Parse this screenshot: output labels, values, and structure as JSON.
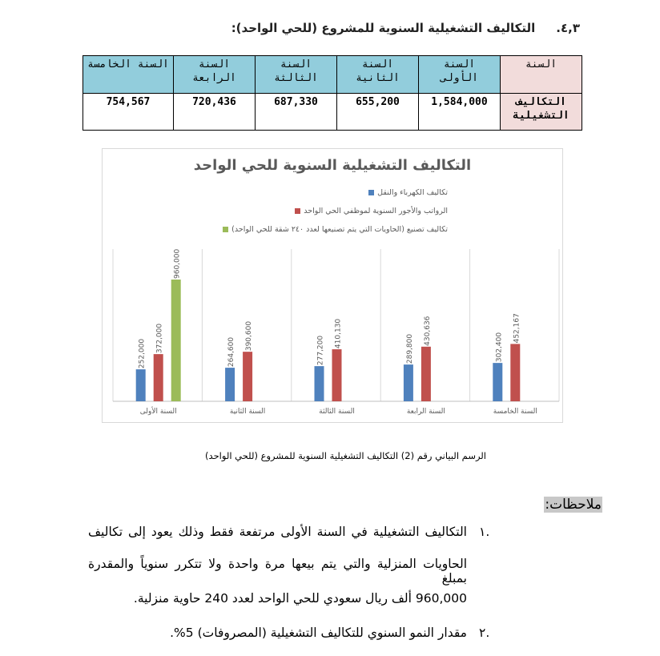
{
  "heading": {
    "number": "٤,٣.",
    "title": "التكاليف التشغيلية السنوية للمشروع (للحي الواحد):"
  },
  "table": {
    "header_label": "السنة",
    "columns": [
      "السنة الأولى",
      "السنة الثانية",
      "السنة الثالثة",
      "السنة الرابعة",
      "السنة الخامسة"
    ],
    "row_label": "التكاليف التشغيلية",
    "values": [
      "1,584,000",
      "655,200",
      "687,330",
      "720,436",
      "754,567"
    ]
  },
  "chart_data": {
    "type": "bar",
    "title": "التكاليف التشغيلية السنوية للحي الواحد",
    "categories": [
      "السنة الأولى",
      "السنة الثانية",
      "السنة الثالثة",
      "السنة الرابعة",
      "السنة الخامسة"
    ],
    "series": [
      {
        "name": "تكاليف الكهرباء والنقل",
        "color": "#4f81bd",
        "values": [
          252000,
          264600,
          277200,
          289800,
          302400
        ],
        "labels": [
          "252,000",
          "264,600",
          "277,200",
          "289,800",
          "302,400"
        ]
      },
      {
        "name": "الرواتب والأجور السنوية لموظفي الحي الواحد",
        "color": "#c0504d",
        "values": [
          372000,
          390600,
          410130,
          430636,
          452167
        ],
        "labels": [
          "372,000",
          "390,600",
          "410,130",
          "430,636",
          "452,167"
        ]
      },
      {
        "name": "تكاليف تصنيع (الحاويات التي يتم تصنيعها لعدد ٢٤٠ شقة للحي الواحد)",
        "color": "#9bbb59",
        "values": [
          960000,
          null,
          null,
          null,
          null
        ],
        "labels": [
          "960,000",
          "",
          "",
          "",
          ""
        ]
      }
    ],
    "ylim": [
      0,
      1200000
    ],
    "grid": "vertical category separators",
    "legend": "top",
    "xlabel": "",
    "ylabel": ""
  },
  "caption": "الرسم البياني رقم (2) التكاليف التشغيلية السنوية للمشروع (للحي الواحد)",
  "notes": {
    "label": "ملاحظات:",
    "items": [
      {
        "marker": "١.",
        "lines": [
          "التكاليف التشغيلية في السنة الأولى مرتفعة فقط وذلك يعود إلى تكاليف",
          "الحاويات المنزلية والتي يتم بيعها مرة واحدة ولا تتكرر سنوياً والمقدرة بمبلغ",
          "960,000 ألف ريال سعودي للحي الواحد لعدد 240 حاوية منزلية."
        ]
      },
      {
        "marker": "٢.",
        "lines": [
          "مقدار النمو السنوي للتكاليف التشغيلية (المصروفات) 5%."
        ]
      }
    ]
  }
}
